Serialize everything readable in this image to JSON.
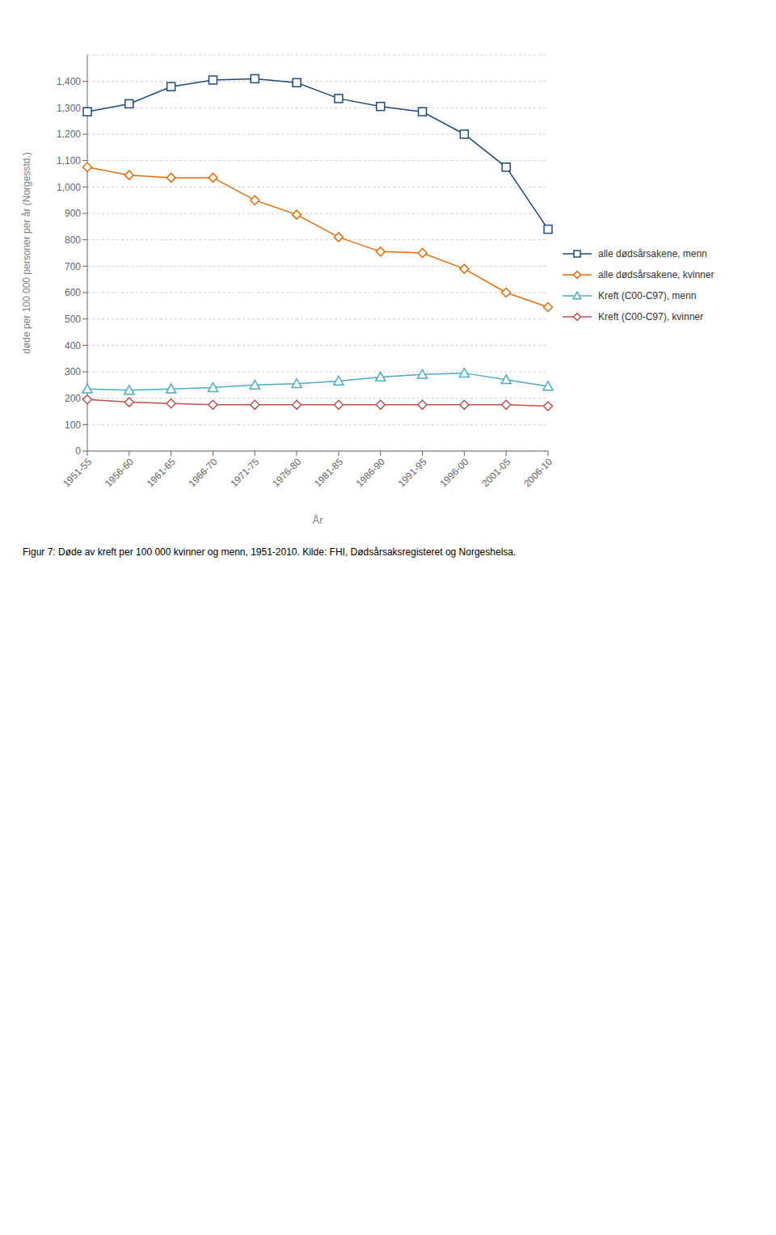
{
  "chart_data": {
    "type": "line",
    "title": "Figur 7: Døde av kreft per 100 000 kvinner og menn, 1951-2010. Kilde: FHI, Dødsårsaksregisteret og Norgeshelsa.",
    "x_label": "År",
    "y_label": "døde per 100 000 personer per år (Norgesstd.)",
    "categories": [
      "1951-55",
      "1956-60",
      "1961-65",
      "1966-70",
      "1971-75",
      "1976-80",
      "1981-85",
      "1986-90",
      "1991-95",
      "1996-00",
      "2001-05",
      "2006-10"
    ],
    "series": [
      {
        "name": "alle dødsårsakene, menn",
        "color": "#1F497D",
        "marker": "square",
        "values": [
          1285,
          1315,
          1380,
          1405,
          1410,
          1395,
          1335,
          1305,
          1285,
          1200,
          1075,
          840
        ]
      },
      {
        "name": "alle dødsårsakene, kvinner",
        "color": "#E36C09",
        "marker": "diamond",
        "values": [
          1075,
          1045,
          1035,
          1035,
          950,
          895,
          810,
          755,
          750,
          690,
          600,
          545
        ]
      },
      {
        "name": "Kreft (C00-C97), menn",
        "color": "#4BACC6",
        "marker": "triangle",
        "values": [
          235,
          230,
          235,
          240,
          250,
          255,
          265,
          280,
          290,
          295,
          270,
          245
        ]
      },
      {
        "name": "Kreft (C00-C97), kvinner",
        "color": "#C0504D",
        "marker": "diamond",
        "values": [
          195,
          185,
          180,
          175,
          175,
          175,
          175,
          175,
          175,
          175,
          175,
          170
        ]
      }
    ],
    "ylim": [
      0,
      1500
    ],
    "yticks": [
      0,
      100,
      200,
      300,
      400,
      500,
      600,
      700,
      800,
      900,
      {
        "value": 1000,
        "label": "1,000"
      },
      {
        "value": 1100,
        "label": "1,100"
      },
      {
        "value": 1200,
        "label": "1,200"
      },
      {
        "value": 1300,
        "label": "1,300"
      },
      {
        "value": 1400,
        "label": "1,400"
      }
    ],
    "grid": true,
    "legend": "right"
  }
}
